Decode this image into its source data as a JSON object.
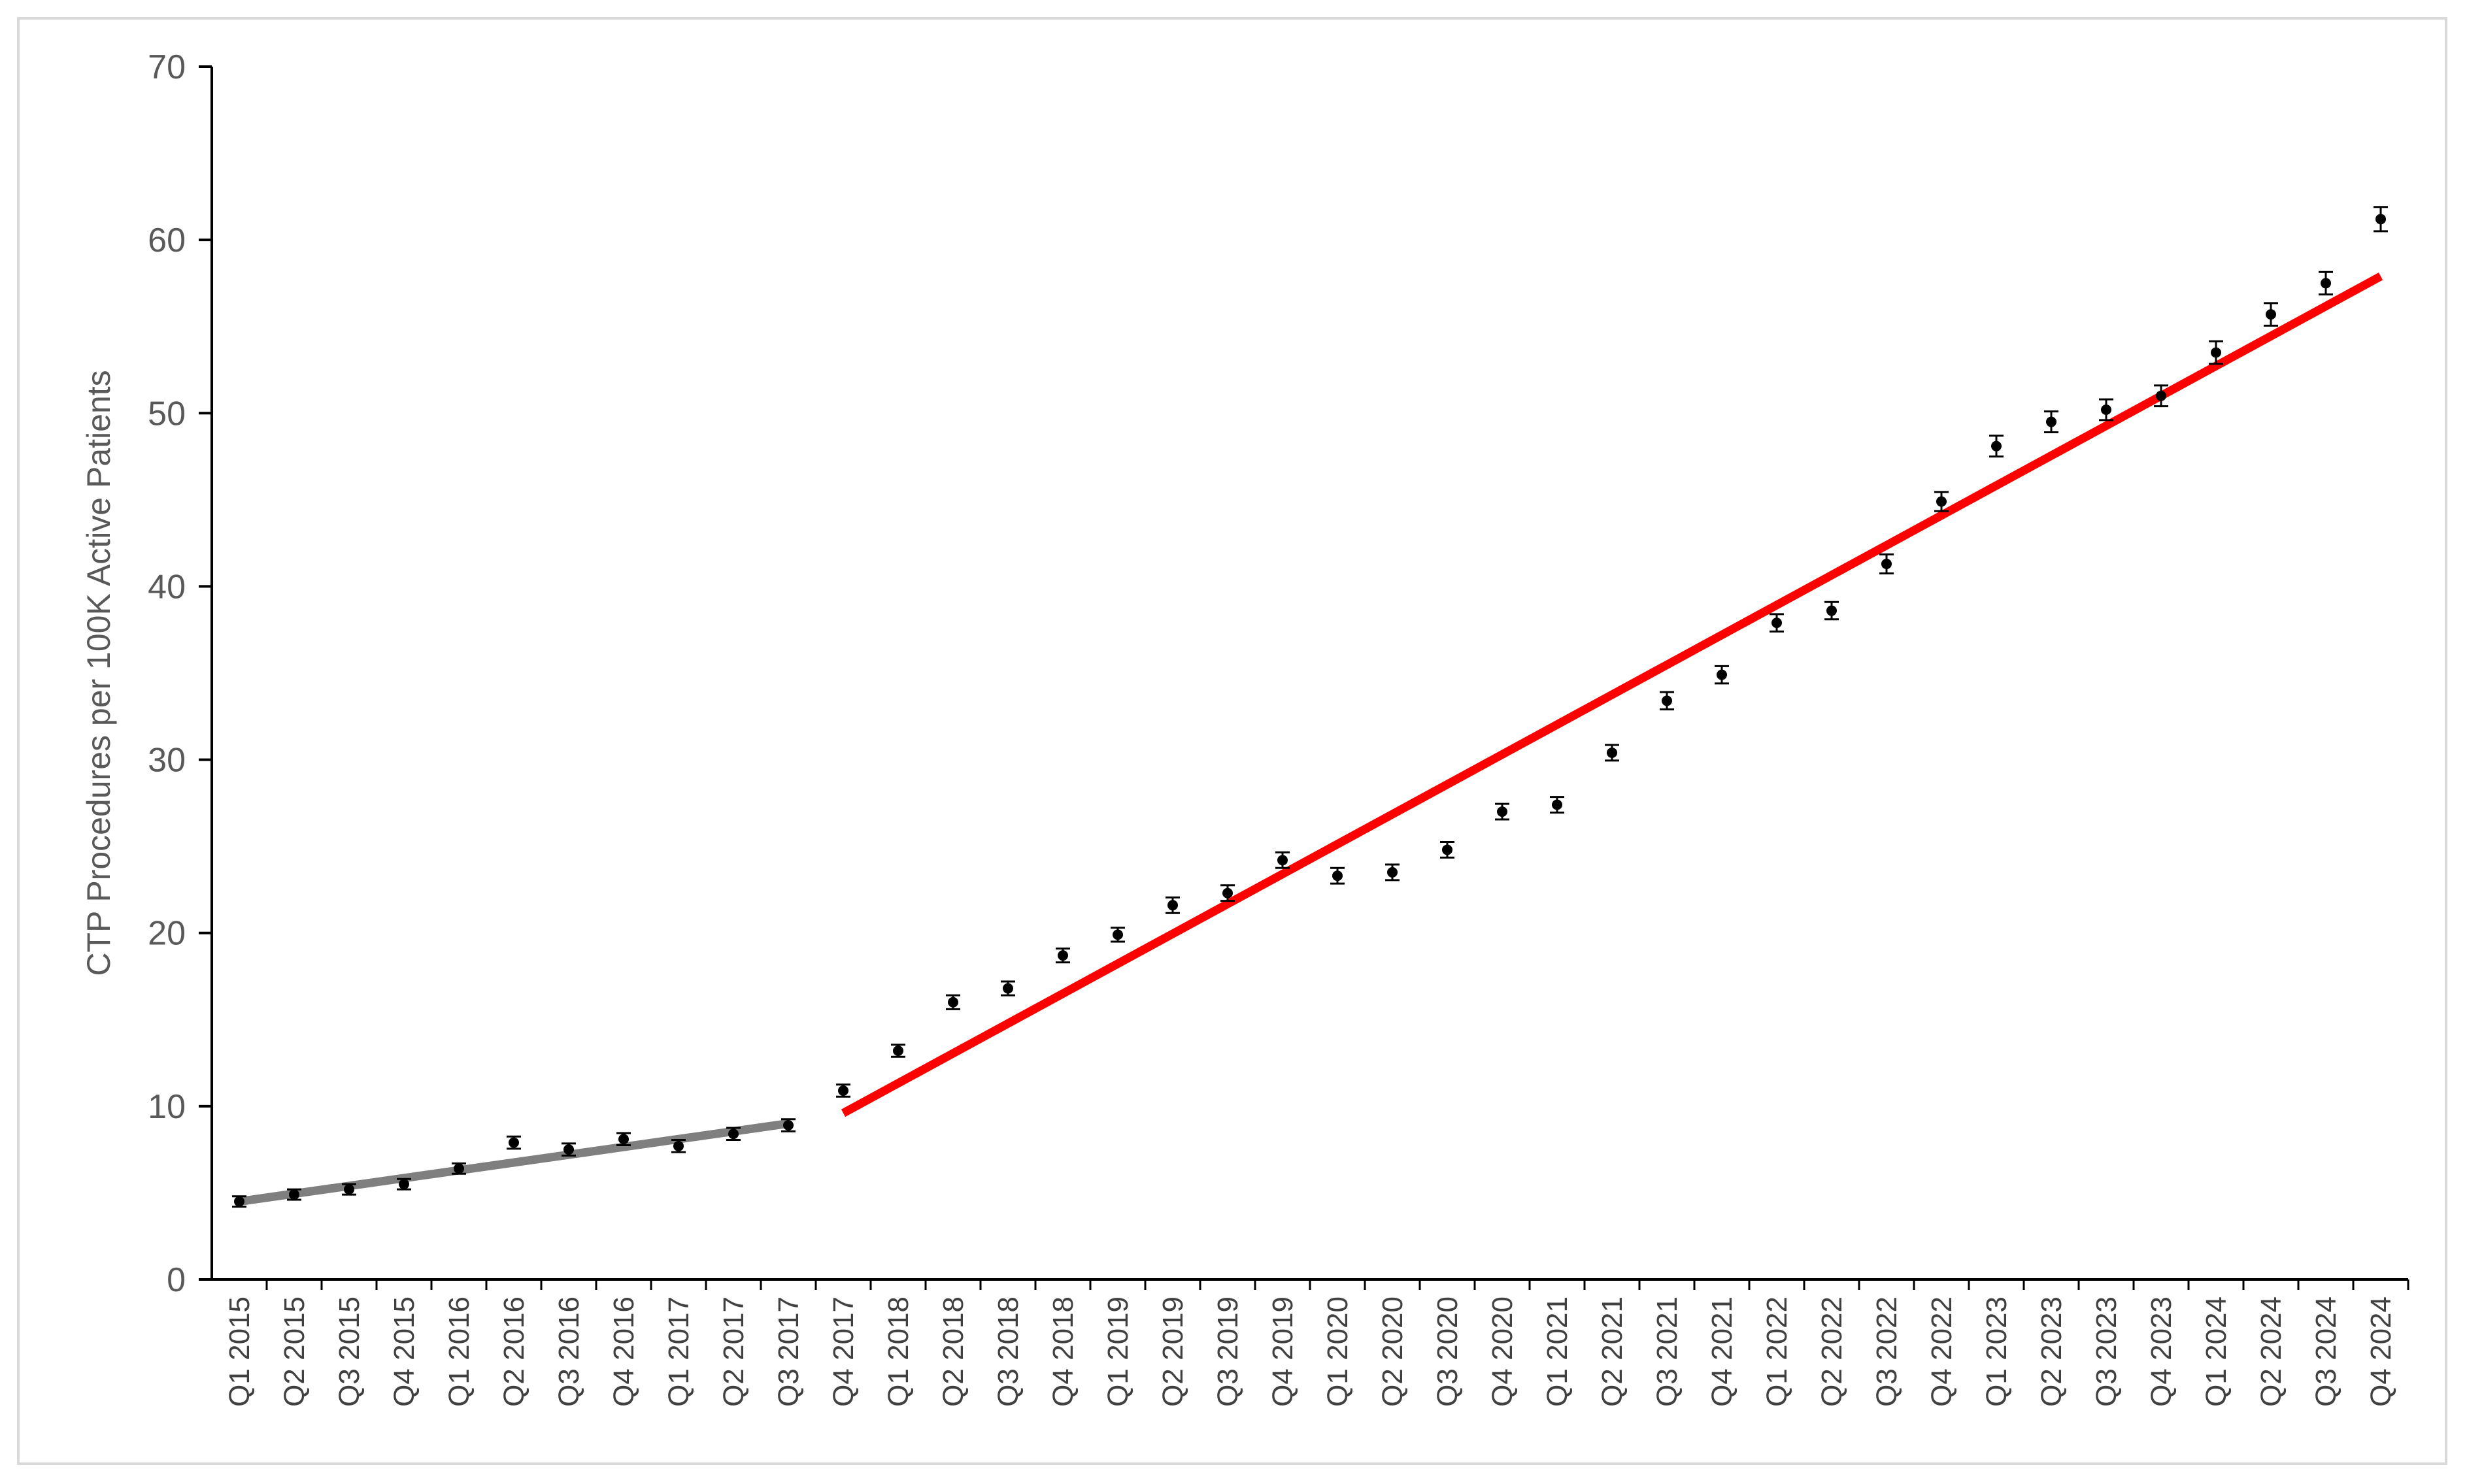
{
  "chart_data": {
    "type": "scatter",
    "title": "",
    "xlabel": "",
    "ylabel": "CTP Procedures per 100K Active Patients",
    "ylim": [
      0,
      70
    ],
    "yticks": [
      0,
      10,
      20,
      30,
      40,
      50,
      60,
      70
    ],
    "grid": false,
    "legend": "none",
    "categories": [
      "Q1 2015",
      "Q2 2015",
      "Q3 2015",
      "Q4 2015",
      "Q1 2016",
      "Q2 2016",
      "Q3 2016",
      "Q4 2016",
      "Q1 2017",
      "Q2 2017",
      "Q3 2017",
      "Q4 2017",
      "Q1 2018",
      "Q2 2018",
      "Q3 2018",
      "Q4 2018",
      "Q1 2019",
      "Q2 2019",
      "Q3 2019",
      "Q4 2019",
      "Q1 2020",
      "Q2 2020",
      "Q3 2020",
      "Q4 2020",
      "Q1 2021",
      "Q2 2021",
      "Q3 2021",
      "Q4 2021",
      "Q1 2022",
      "Q2 2022",
      "Q3 2022",
      "Q4 2022",
      "Q1 2023",
      "Q2 2023",
      "Q3 2023",
      "Q4 2023",
      "Q1 2024",
      "Q2 2024",
      "Q3 2024",
      "Q4 2024"
    ],
    "values": [
      4.5,
      4.9,
      5.2,
      5.5,
      6.4,
      7.9,
      7.5,
      8.1,
      7.7,
      8.4,
      8.9,
      10.9,
      13.2,
      16.0,
      16.8,
      18.7,
      19.9,
      21.6,
      22.3,
      24.2,
      23.3,
      23.5,
      24.8,
      27.0,
      27.4,
      30.4,
      33.4,
      34.9,
      37.9,
      38.6,
      41.3,
      44.9,
      48.1,
      49.5,
      50.2,
      51.0,
      53.5,
      55.7,
      57.5,
      61.2
    ],
    "error": [
      0.3,
      0.3,
      0.3,
      0.3,
      0.3,
      0.35,
      0.35,
      0.35,
      0.35,
      0.35,
      0.35,
      0.35,
      0.35,
      0.4,
      0.4,
      0.4,
      0.4,
      0.45,
      0.45,
      0.45,
      0.45,
      0.45,
      0.45,
      0.45,
      0.45,
      0.45,
      0.5,
      0.5,
      0.5,
      0.5,
      0.55,
      0.55,
      0.6,
      0.6,
      0.6,
      0.6,
      0.65,
      0.65,
      0.65,
      0.7
    ],
    "trendlines": [
      {
        "from": "Q1 2015",
        "to": "Q3 2017",
        "y_start": 4.5,
        "y_end": 9.0,
        "color": "#7f7f7f"
      },
      {
        "from": "Q4 2017",
        "to": "Q4 2024",
        "y_start": 9.6,
        "y_end": 57.9,
        "color": "#ff0000"
      }
    ],
    "marker_color": "#000000"
  }
}
